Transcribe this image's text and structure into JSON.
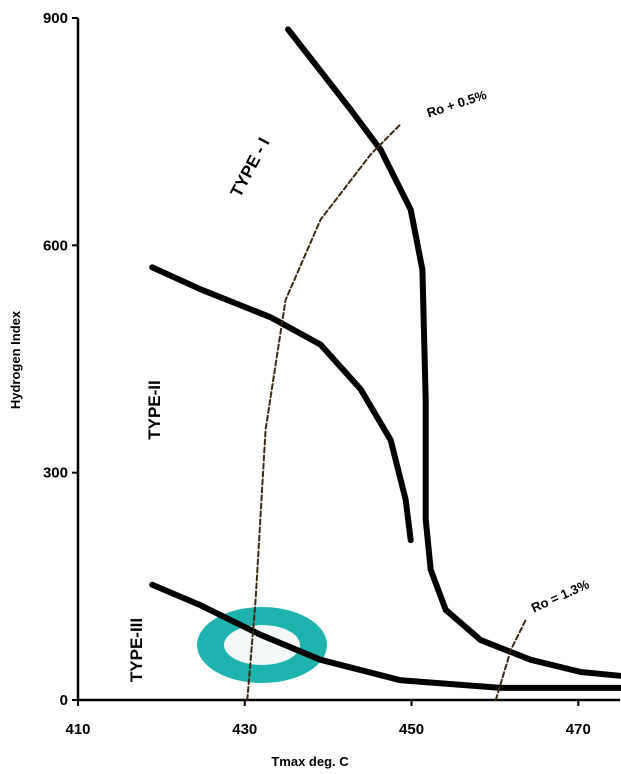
{
  "chart_data": {
    "type": "line",
    "xlabel": "Tmax deg. C",
    "ylabel": "Hydrogen Index",
    "xlim": [
      410,
      475
    ],
    "ylim": [
      0,
      900
    ],
    "xticks": [
      410,
      430,
      450,
      470
    ],
    "yticks": [
      0,
      300,
      600,
      900
    ],
    "series": [
      {
        "name": "TYPE - I",
        "color": "#000000",
        "style": "solid",
        "x": [
          435.2,
          442.7,
          446.3,
          449.9,
          451.3,
          451.7,
          451.7,
          452.3,
          454.1,
          458.3,
          464.3,
          470.3,
          475
        ],
        "values": [
          885,
          779,
          726,
          647,
          568,
          396,
          238,
          172,
          119,
          79,
          53,
          37,
          32
        ]
      },
      {
        "name": "TYPE-II",
        "color": "#000000",
        "style": "solid",
        "x": [
          418.9,
          424.7,
          433.1,
          439.1,
          443.9,
          447.5,
          449.3,
          449.9
        ],
        "values": [
          571,
          542,
          505,
          469,
          410,
          343,
          264,
          211
        ]
      },
      {
        "name": "TYPE-III",
        "color": "#000000",
        "style": "solid",
        "x": [
          418.9,
          424.7,
          431.9,
          439.1,
          448.7,
          460.7,
          475
        ],
        "values": [
          152,
          125,
          86,
          53,
          26,
          16,
          16
        ]
      },
      {
        "name": "Ro + 0.5%",
        "color": "#3a2a10",
        "style": "dashed",
        "x": [
          430.3,
          431.3,
          432.5,
          434.9,
          439.1,
          445.1,
          448.7
        ],
        "values": [
          0,
          132,
          357,
          528,
          634,
          720,
          760
        ]
      },
      {
        "name": "Ro = 1.3%",
        "color": "#3a2a10",
        "style": "dashed",
        "x": [
          460.1,
          461.9,
          463.7
        ],
        "values": [
          0,
          66,
          106
        ]
      }
    ]
  }
}
